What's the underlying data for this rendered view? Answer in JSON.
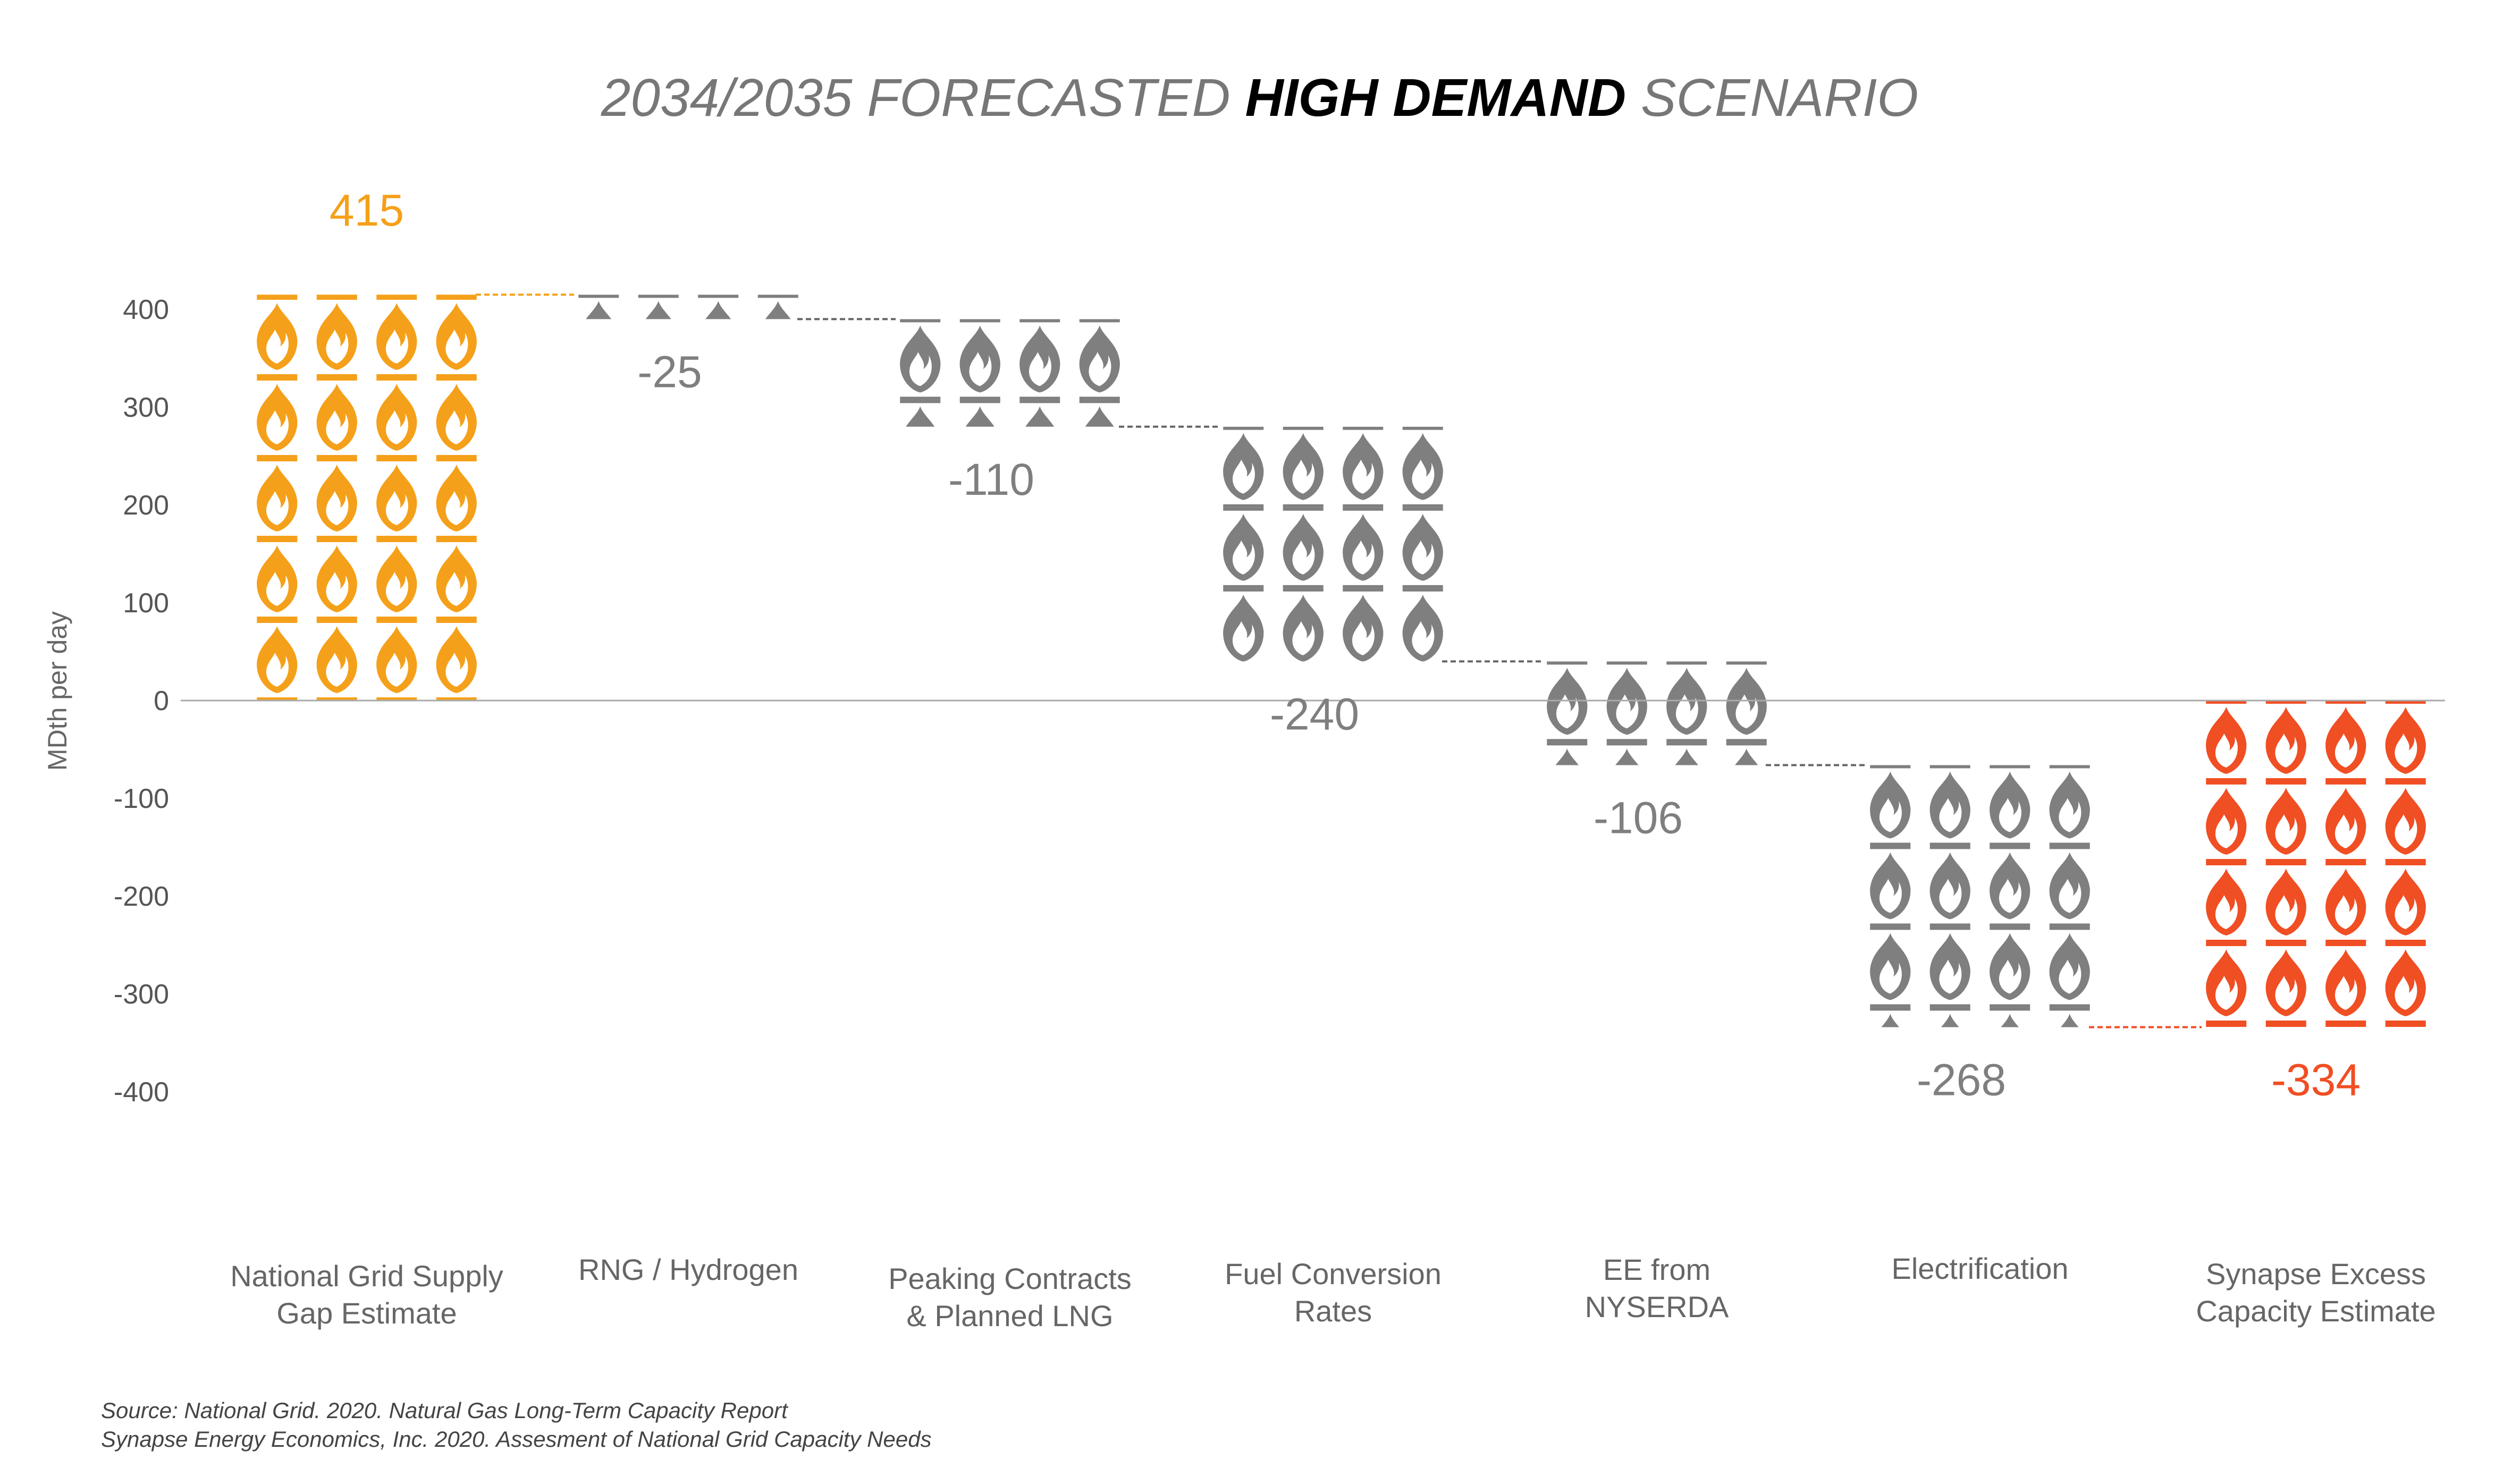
{
  "title": {
    "prefix": "2034/2035 FORECASTED ",
    "emphasis": "HIGH DEMAND",
    "suffix": " SCENARIO"
  },
  "colors": {
    "positive": "#F5A01A",
    "step": "#7F7F7F",
    "result": "#F04E23",
    "title_text": "#777777",
    "title_emphasis": "#000000",
    "axis_line": "#AAAAAA"
  },
  "icons": {
    "positive": "gas-flame-icon",
    "step": "gas-flame-icon",
    "result": "gas-flame-icon"
  },
  "chart_data": {
    "type": "waterfall",
    "ylabel": "MDth per day",
    "ylim": [
      -400,
      400
    ],
    "yticks": [
      400,
      300,
      200,
      100,
      0,
      -100,
      -200,
      -300,
      -400
    ],
    "grid": false,
    "categories": [
      [
        "National Grid Supply",
        "Gap Estimate"
      ],
      [
        "RNG / Hydrogen"
      ],
      [
        "Peaking Contracts",
        "& Planned LNG"
      ],
      [
        "Fuel Conversion",
        "Rates"
      ],
      [
        "EE from",
        "NYSERDA"
      ],
      [
        "Electrification"
      ],
      [
        "Synapse Excess",
        "Capacity Estimate"
      ]
    ],
    "values": [
      415,
      -25,
      -110,
      -240,
      -106,
      -268,
      -334
    ],
    "value_labels": [
      "415",
      "-25",
      "-110",
      "-240",
      "-106",
      "-268",
      "-334"
    ],
    "kinds": [
      "positive",
      "step",
      "step",
      "step",
      "step",
      "step",
      "result"
    ]
  },
  "source": {
    "line1": "Source: National Grid. 2020. Natural Gas Long-Term Capacity Report",
    "line2": "Synapse Energy Economics, Inc. 2020. Assesment of National Grid Capacity Needs"
  }
}
